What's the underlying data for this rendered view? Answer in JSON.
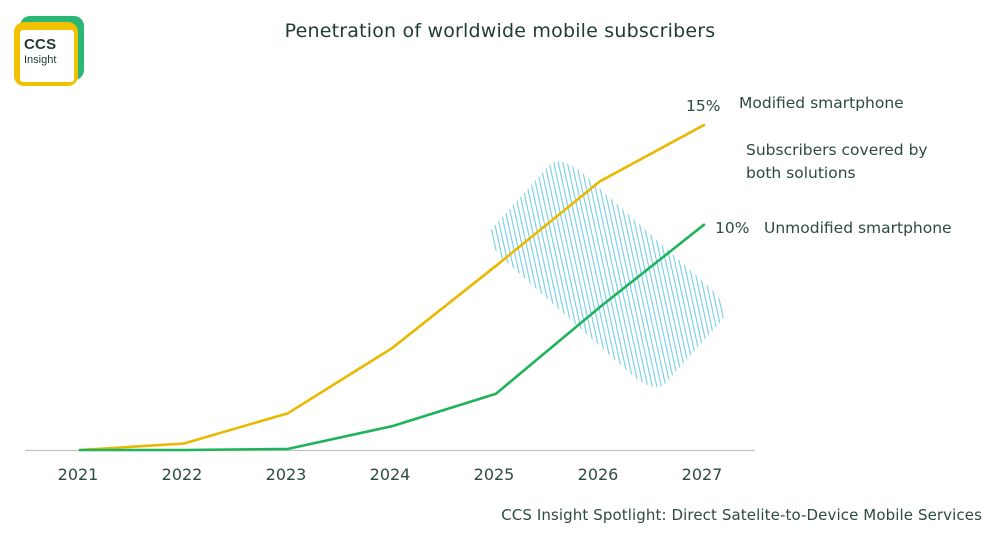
{
  "logo": {
    "line1": "CCS",
    "line2": "Insight"
  },
  "footer": "CCS Insight Spotlight: Direct Satelite-to-Device Mobile Services",
  "colors": {
    "modified": "#e9b800",
    "unmodified": "#1fb45a",
    "overlap": "#7fd3e8",
    "axis": "#bfc4c2",
    "text": "#2e4a44",
    "title": "#1f3b34"
  },
  "chart_data": {
    "type": "line",
    "title": "Penetration of worldwide mobile subscribers",
    "xlabel": "",
    "ylabel": "",
    "categories": [
      "2021",
      "2022",
      "2023",
      "2024",
      "2025",
      "2026",
      "2027"
    ],
    "ylim": [
      0,
      15
    ],
    "grid": false,
    "series": [
      {
        "name": "Modified smartphone",
        "values": [
          0,
          0.3,
          1.7,
          4.7,
          8.5,
          12.4,
          15
        ],
        "end_label": "15%",
        "color": "#e9b800"
      },
      {
        "name": "Unmodified smartphone",
        "values": [
          0,
          0,
          0.05,
          1.1,
          2.6,
          6.6,
          10.4
        ],
        "end_label": "10%",
        "color": "#1fb45a"
      }
    ],
    "annotations": [
      "Subscribers covered by",
      "both solutions"
    ]
  }
}
